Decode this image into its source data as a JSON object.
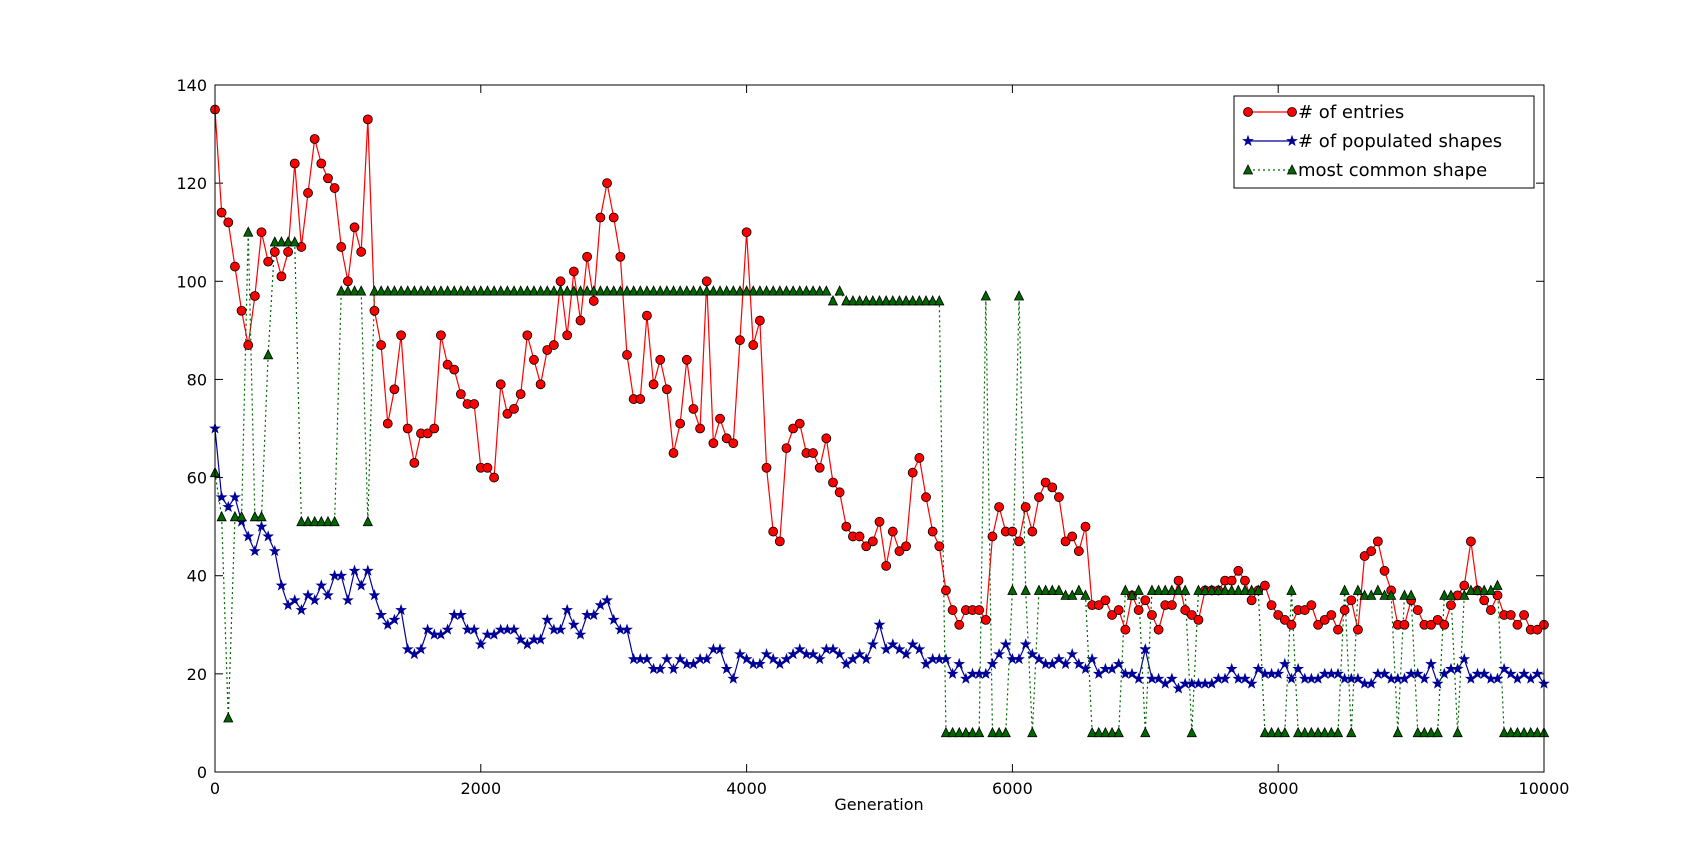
{
  "chart_data": {
    "type": "line",
    "xlabel": "Generation",
    "x": [
      0,
      50,
      100,
      150,
      200,
      250,
      300,
      350,
      400,
      450,
      500,
      550,
      600,
      650,
      700,
      750,
      800,
      850,
      900,
      950,
      1000,
      1050,
      1100,
      1150,
      1200,
      1250,
      1300,
      1350,
      1400,
      1450,
      1500,
      1550,
      1600,
      1650,
      1700,
      1750,
      1800,
      1850,
      1900,
      1950,
      2000,
      2050,
      2100,
      2150,
      2200,
      2250,
      2300,
      2350,
      2400,
      2450,
      2500,
      2550,
      2600,
      2650,
      2700,
      2750,
      2800,
      2850,
      2900,
      2950,
      3000,
      3050,
      3100,
      3150,
      3200,
      3250,
      3300,
      3350,
      3400,
      3450,
      3500,
      3550,
      3600,
      3650,
      3700,
      3750,
      3800,
      3850,
      3900,
      3950,
      4000,
      4050,
      4100,
      4150,
      4200,
      4250,
      4300,
      4350,
      4400,
      4450,
      4500,
      4550,
      4600,
      4650,
      4700,
      4750,
      4800,
      4850,
      4900,
      4950,
      5000,
      5050,
      5100,
      5150,
      5200,
      5250,
      5300,
      5350,
      5400,
      5450,
      5500,
      5550,
      5600,
      5650,
      5700,
      5750,
      5800,
      5850,
      5900,
      5950,
      6000,
      6050,
      6100,
      6150,
      6200,
      6250,
      6300,
      6350,
      6400,
      6450,
      6500,
      6550,
      6600,
      6650,
      6700,
      6750,
      6800,
      6850,
      6900,
      6950,
      7000,
      7050,
      7100,
      7150,
      7200,
      7250,
      7300,
      7350,
      7400,
      7450,
      7500,
      7550,
      7600,
      7650,
      7700,
      7750,
      7800,
      7850,
      7900,
      7950,
      8000,
      8050,
      8100,
      8150,
      8200,
      8250,
      8300,
      8350,
      8400,
      8450,
      8500,
      8550,
      8600,
      8650,
      8700,
      8750,
      8800,
      8850,
      8900,
      8950,
      9000,
      9050,
      9100,
      9150,
      9200,
      9250,
      9300,
      9350,
      9400,
      9450,
      9500,
      9550,
      9600,
      9650,
      9700,
      9750,
      9800,
      9850,
      9900,
      9950,
      10000
    ],
    "series": [
      {
        "name": "# of entries",
        "color": "#ff0000",
        "marker": "circle",
        "linestyle": "solid",
        "values": [
          135,
          114,
          112,
          103,
          94,
          87,
          97,
          110,
          104,
          106,
          101,
          106,
          124,
          107,
          118,
          129,
          124,
          121,
          119,
          107,
          100,
          111,
          106,
          133,
          94,
          87,
          71,
          78,
          89,
          70,
          63,
          69,
          69,
          70,
          89,
          83,
          82,
          77,
          75,
          75,
          62,
          62,
          60,
          79,
          73,
          74,
          77,
          89,
          84,
          79,
          86,
          87,
          100,
          89,
          102,
          92,
          105,
          96,
          113,
          120,
          113,
          105,
          85,
          76,
          76,
          93,
          79,
          84,
          78,
          65,
          71,
          84,
          74,
          70,
          100,
          67,
          72,
          68,
          67,
          88,
          110,
          87,
          92,
          62,
          49,
          47,
          66,
          70,
          71,
          65,
          65,
          62,
          68,
          59,
          57,
          50,
          48,
          48,
          46,
          47,
          51,
          42,
          49,
          45,
          46,
          61,
          64,
          56,
          49,
          46,
          37,
          33,
          30,
          33,
          33,
          33,
          31,
          48,
          54,
          49,
          49,
          47,
          54,
          49,
          56,
          59,
          58,
          56,
          47,
          48,
          45,
          50,
          34,
          34,
          35,
          32,
          33,
          29,
          36,
          33,
          35,
          32,
          29,
          34,
          34,
          39,
          33,
          32,
          31,
          37,
          37,
          37,
          39,
          39,
          41,
          39,
          35,
          37,
          38,
          34,
          32,
          31,
          30,
          33,
          33,
          34,
          30,
          31,
          32,
          29,
          33,
          35,
          29,
          44,
          45,
          47,
          41,
          37,
          30,
          30,
          35,
          33,
          30,
          30,
          31,
          30,
          34,
          36,
          38,
          47,
          37,
          35,
          33,
          36,
          32,
          32,
          30,
          32,
          29,
          29,
          30
        ]
      },
      {
        "name": "# of populated shapes",
        "color": "#000099",
        "marker": "star",
        "linestyle": "solid",
        "values": [
          70,
          56,
          54,
          56,
          51,
          48,
          45,
          50,
          48,
          45,
          38,
          34,
          35,
          33,
          36,
          35,
          38,
          36,
          40,
          40,
          35,
          41,
          38,
          41,
          36,
          32,
          30,
          31,
          33,
          25,
          24,
          25,
          29,
          28,
          28,
          29,
          32,
          32,
          29,
          29,
          26,
          28,
          28,
          29,
          29,
          29,
          27,
          26,
          27,
          27,
          31,
          29,
          29,
          33,
          30,
          28,
          32,
          32,
          34,
          35,
          31,
          29,
          29,
          23,
          23,
          23,
          21,
          21,
          23,
          21,
          23,
          22,
          22,
          23,
          23,
          25,
          25,
          21,
          19,
          24,
          23,
          22,
          22,
          24,
          23,
          22,
          23,
          24,
          25,
          24,
          24,
          23,
          25,
          25,
          24,
          22,
          23,
          24,
          23,
          26,
          30,
          25,
          26,
          25,
          24,
          26,
          25,
          22,
          23,
          23,
          23,
          20,
          22,
          19,
          20,
          20,
          20,
          22,
          24,
          26,
          23,
          23,
          26,
          24,
          23,
          22,
          22,
          23,
          22,
          24,
          22,
          21,
          23,
          20,
          21,
          21,
          22,
          20,
          20,
          19,
          25,
          19,
          19,
          18,
          19,
          17,
          18,
          18,
          18,
          18,
          18,
          19,
          19,
          21,
          19,
          19,
          18,
          21,
          20,
          20,
          20,
          22,
          19,
          21,
          19,
          19,
          19,
          20,
          20,
          20,
          19,
          19,
          19,
          18,
          18,
          20,
          20,
          19,
          19,
          19,
          20,
          20,
          19,
          22,
          18,
          20,
          21,
          21,
          23,
          19,
          20,
          20,
          19,
          19,
          21,
          20,
          19,
          20,
          19,
          20,
          18
        ]
      },
      {
        "name": "most common shape",
        "color": "#006600",
        "marker": "triangle",
        "linestyle": "dotted",
        "values": [
          61,
          52,
          11,
          52,
          52,
          110,
          52,
          52,
          85,
          108,
          108,
          108,
          108,
          51,
          51,
          51,
          51,
          51,
          51,
          98,
          98,
          98,
          98,
          51,
          98,
          98,
          98,
          98,
          98,
          98,
          98,
          98,
          98,
          98,
          98,
          98,
          98,
          98,
          98,
          98,
          98,
          98,
          98,
          98,
          98,
          98,
          98,
          98,
          98,
          98,
          98,
          98,
          98,
          98,
          98,
          98,
          98,
          98,
          98,
          98,
          98,
          98,
          98,
          98,
          98,
          98,
          98,
          98,
          98,
          98,
          98,
          98,
          98,
          98,
          98,
          98,
          98,
          98,
          98,
          98,
          98,
          98,
          98,
          98,
          98,
          98,
          98,
          98,
          98,
          98,
          98,
          98,
          98,
          96,
          98,
          96,
          96,
          96,
          96,
          96,
          96,
          96,
          96,
          96,
          96,
          96,
          96,
          96,
          96,
          96,
          8,
          8,
          8,
          8,
          8,
          8,
          97,
          8,
          8,
          8,
          37,
          97,
          37,
          8,
          37,
          37,
          37,
          37,
          36,
          36,
          37,
          36,
          8,
          8,
          8,
          8,
          8,
          37,
          36,
          37,
          8,
          37,
          37,
          37,
          37,
          37,
          37,
          8,
          37,
          37,
          37,
          37,
          37,
          37,
          37,
          37,
          37,
          37,
          8,
          8,
          8,
          8,
          37,
          8,
          8,
          8,
          8,
          8,
          8,
          8,
          37,
          8,
          37,
          36,
          36,
          37,
          36,
          36,
          8,
          36,
          36,
          8,
          8,
          8,
          8,
          36,
          36,
          8,
          36,
          37,
          37,
          37,
          37,
          38,
          8,
          8,
          8,
          8,
          8,
          8,
          8
        ]
      }
    ],
    "xlim": [
      0,
      10000
    ],
    "xticks": [
      0,
      2000,
      4000,
      6000,
      8000,
      10000
    ],
    "ylim": [
      0,
      140
    ],
    "yticks": [
      0,
      20,
      40,
      60,
      80,
      100,
      120,
      140
    ],
    "grid": false,
    "legend": "upper right"
  }
}
